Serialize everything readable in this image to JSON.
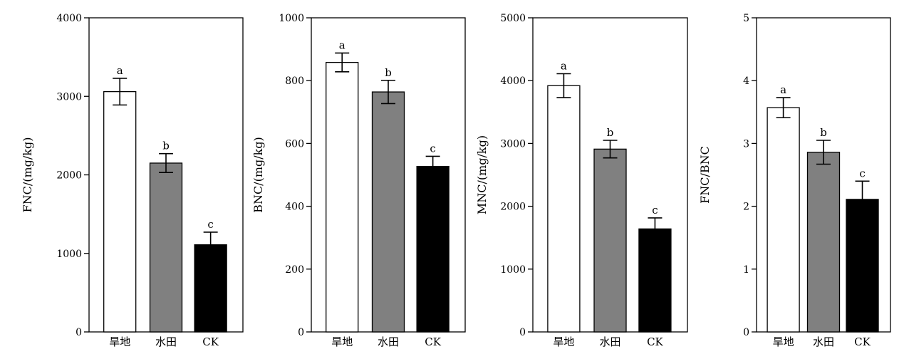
{
  "chart_data": [
    {
      "type": "bar",
      "categories": [
        "旱地",
        "水田",
        "CK"
      ],
      "values": [
        3060,
        2150,
        1110
      ],
      "errors": [
        170,
        120,
        160
      ],
      "significance": [
        "a",
        "b",
        "c"
      ],
      "ylabel": "FNC/(mg/kg)",
      "ylim": [
        0,
        4000
      ],
      "yticks": [
        "0",
        "1000",
        "2000",
        "3000",
        "4000"
      ],
      "colors": [
        "#ffffff",
        "#808080",
        "#000000"
      ],
      "grid": false
    },
    {
      "type": "bar",
      "categories": [
        "旱地",
        "水田",
        "CK"
      ],
      "values": [
        858,
        764,
        527
      ],
      "errors": [
        30,
        37,
        32
      ],
      "significance": [
        "a",
        "b",
        "c"
      ],
      "ylabel": "BNC/(mg/kg)",
      "ylim": [
        0,
        1000
      ],
      "yticks": [
        "0",
        "200",
        "400",
        "600",
        "800",
        "1000"
      ],
      "colors": [
        "#ffffff",
        "#808080",
        "#000000"
      ],
      "grid": false
    },
    {
      "type": "bar",
      "categories": [
        "旱地",
        "水田",
        "CK"
      ],
      "values": [
        3920,
        2910,
        1640
      ],
      "errors": [
        190,
        140,
        175
      ],
      "significance": [
        "a",
        "b",
        "c"
      ],
      "ylabel": "MNC/(mg/kg)",
      "ylim": [
        0,
        5000
      ],
      "yticks": [
        "0",
        "1000",
        "2000",
        "3000",
        "4000",
        "5000"
      ],
      "colors": [
        "#ffffff",
        "#808080",
        "#000000"
      ],
      "grid": false
    },
    {
      "type": "bar",
      "categories": [
        "旱地",
        "水田",
        "CK"
      ],
      "values": [
        3.57,
        2.86,
        2.11
      ],
      "errors": [
        0.16,
        0.19,
        0.29
      ],
      "significance": [
        "a",
        "b",
        "c"
      ],
      "ylabel": "FNC/BNC",
      "ylim": [
        0,
        5
      ],
      "yticks": [
        "0",
        "1",
        "2",
        "3",
        "4",
        "5"
      ],
      "colors": [
        "#ffffff",
        "#808080",
        "#000000"
      ],
      "grid": false
    }
  ]
}
